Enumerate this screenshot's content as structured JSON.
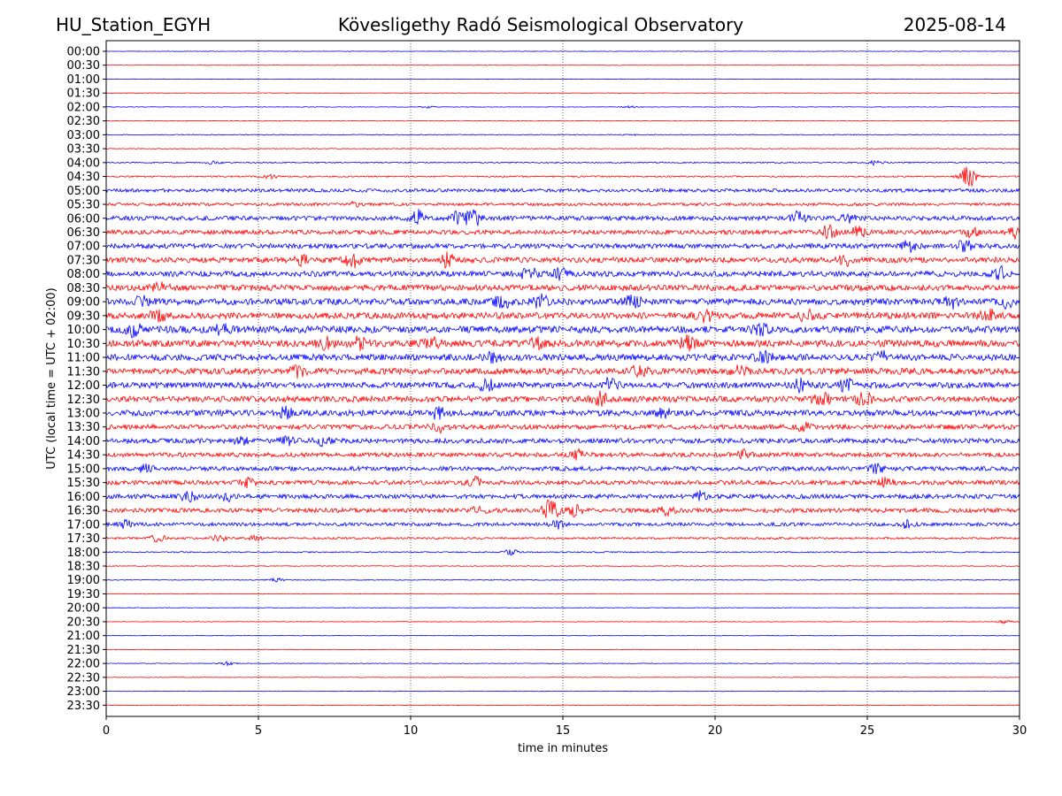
{
  "header": {
    "station": "HU_Station_EGYH",
    "observatory": "Kövesligethy Radó Seismological Observatory",
    "date": "2025-08-14"
  },
  "chart_data": {
    "type": "line",
    "title": "Kövesligethy Radó Seismological Observatory",
    "xlabel": "time in minutes",
    "ylabel": "UTC (local time = UTC + 02:00)",
    "xlim": [
      0,
      30
    ],
    "xticks": [
      "0",
      "5",
      "10",
      "15",
      "20",
      "25",
      "30"
    ],
    "xtick_values": [
      0,
      5,
      10,
      15,
      20,
      25,
      30
    ],
    "grid": "vertical dotted at 5-minute ticks",
    "trace_colors": [
      "#0000ff",
      "#ff0000"
    ],
    "rows": [
      {
        "label": "00:00",
        "level": 0.05,
        "events": []
      },
      {
        "label": "00:30",
        "level": 0.05,
        "events": []
      },
      {
        "label": "01:00",
        "level": 0.05,
        "events": []
      },
      {
        "label": "01:30",
        "level": 0.05,
        "events": []
      },
      {
        "label": "02:00",
        "level": 0.06,
        "events": [
          [
            10.6,
            0.2
          ],
          [
            17.2,
            0.2
          ]
        ]
      },
      {
        "label": "02:30",
        "level": 0.06,
        "events": []
      },
      {
        "label": "03:00",
        "level": 0.08,
        "events": [
          [
            17.2,
            0.15
          ]
        ]
      },
      {
        "label": "03:30",
        "level": 0.08,
        "events": []
      },
      {
        "label": "04:00",
        "level": 0.12,
        "events": [
          [
            3.5,
            0.3
          ],
          [
            25.3,
            0.5
          ]
        ]
      },
      {
        "label": "04:30",
        "level": 0.15,
        "events": [
          [
            5.4,
            0.4
          ],
          [
            28.3,
            2.6
          ]
        ]
      },
      {
        "label": "05:00",
        "level": 0.35,
        "events": []
      },
      {
        "label": "05:30",
        "level": 0.3,
        "events": [
          [
            8.2,
            0.5
          ]
        ]
      },
      {
        "label": "06:00",
        "level": 0.45,
        "events": [
          [
            10.2,
            1.6
          ],
          [
            11.6,
            1.4
          ],
          [
            12.1,
            1.4
          ],
          [
            22.7,
            1.2
          ],
          [
            24.4,
            0.8
          ]
        ]
      },
      {
        "label": "06:30",
        "level": 0.45,
        "events": [
          [
            23.7,
            1.3
          ],
          [
            24.7,
            1.0
          ],
          [
            28.4,
            0.9
          ],
          [
            29.9,
            1.2
          ]
        ]
      },
      {
        "label": "07:00",
        "level": 0.5,
        "events": [
          [
            26.4,
            1.2
          ],
          [
            28.2,
            1.0
          ]
        ]
      },
      {
        "label": "07:30",
        "level": 0.55,
        "events": [
          [
            6.4,
            0.8
          ],
          [
            8.1,
            1.3
          ],
          [
            11.2,
            1.2
          ],
          [
            24.3,
            1.0
          ]
        ]
      },
      {
        "label": "08:00",
        "level": 0.55,
        "events": [
          [
            13.9,
            1.4
          ],
          [
            14.9,
            1.0
          ],
          [
            29.4,
            1.3
          ]
        ]
      },
      {
        "label": "08:30",
        "level": 0.6,
        "events": [
          [
            1.8,
            0.9
          ]
        ]
      },
      {
        "label": "09:00",
        "level": 0.65,
        "events": [
          [
            1.2,
            1.0
          ],
          [
            13.0,
            1.1
          ],
          [
            14.3,
            1.2
          ],
          [
            17.3,
            1.4
          ],
          [
            27.8,
            1.0
          ],
          [
            29.6,
            1.0
          ]
        ]
      },
      {
        "label": "09:30",
        "level": 0.65,
        "events": [
          [
            1.7,
            1.0
          ],
          [
            19.7,
            1.0
          ],
          [
            23.0,
            1.1
          ],
          [
            29.0,
            1.1
          ]
        ]
      },
      {
        "label": "10:00",
        "level": 0.7,
        "events": [
          [
            0.9,
            1.1
          ],
          [
            3.8,
            0.9
          ],
          [
            21.5,
            0.8
          ]
        ]
      },
      {
        "label": "10:30",
        "level": 0.7,
        "events": [
          [
            7.2,
            1.0
          ],
          [
            8.3,
            1.0
          ],
          [
            10.7,
            1.0
          ],
          [
            14.1,
            0.9
          ],
          [
            19.1,
            1.2
          ]
        ]
      },
      {
        "label": "11:00",
        "level": 0.65,
        "events": [
          [
            12.7,
            0.8
          ],
          [
            21.6,
            1.0
          ],
          [
            25.5,
            0.9
          ]
        ]
      },
      {
        "label": "11:30",
        "level": 0.65,
        "events": [
          [
            6.3,
            0.9
          ],
          [
            17.5,
            1.1
          ],
          [
            20.8,
            0.8
          ]
        ]
      },
      {
        "label": "12:00",
        "level": 0.6,
        "events": [
          [
            12.5,
            1.1
          ],
          [
            16.5,
            1.2
          ],
          [
            22.8,
            1.1
          ],
          [
            24.3,
            1.3
          ]
        ]
      },
      {
        "label": "12:30",
        "level": 0.6,
        "events": [
          [
            16.2,
            1.4
          ],
          [
            23.5,
            1.3
          ],
          [
            24.9,
            1.4
          ]
        ]
      },
      {
        "label": "13:00",
        "level": 0.6,
        "events": [
          [
            5.9,
            1.1
          ],
          [
            10.9,
            1.0
          ],
          [
            18.3,
            0.8
          ]
        ]
      },
      {
        "label": "13:30",
        "level": 0.5,
        "events": [
          [
            10.9,
            0.9
          ],
          [
            22.9,
            0.7
          ]
        ]
      },
      {
        "label": "14:00",
        "level": 0.5,
        "events": [
          [
            4.5,
            0.8
          ],
          [
            5.9,
            0.8
          ],
          [
            7.1,
            0.8
          ]
        ]
      },
      {
        "label": "14:30",
        "level": 0.45,
        "events": [
          [
            15.5,
            0.8
          ],
          [
            20.9,
            0.8
          ]
        ]
      },
      {
        "label": "15:00",
        "level": 0.45,
        "events": [
          [
            1.3,
            0.6
          ],
          [
            25.3,
            0.8
          ]
        ]
      },
      {
        "label": "15:30",
        "level": 0.45,
        "events": [
          [
            4.7,
            0.8
          ],
          [
            12.1,
            0.9
          ],
          [
            25.6,
            0.8
          ]
        ]
      },
      {
        "label": "16:00",
        "level": 0.45,
        "events": [
          [
            2.7,
            0.9
          ],
          [
            4.0,
            0.7
          ],
          [
            19.5,
            0.9
          ]
        ]
      },
      {
        "label": "16:30",
        "level": 0.45,
        "events": [
          [
            12.2,
            0.8
          ],
          [
            14.6,
            2.4
          ],
          [
            15.4,
            1.0
          ],
          [
            18.4,
            0.8
          ]
        ]
      },
      {
        "label": "17:00",
        "level": 0.35,
        "events": [
          [
            0.6,
            0.7
          ],
          [
            14.8,
            0.9
          ],
          [
            26.3,
            0.7
          ]
        ]
      },
      {
        "label": "17:30",
        "level": 0.2,
        "events": [
          [
            1.7,
            0.8
          ],
          [
            3.7,
            0.6
          ],
          [
            4.9,
            0.5
          ]
        ]
      },
      {
        "label": "18:00",
        "level": 0.12,
        "events": [
          [
            13.3,
            0.6
          ]
        ]
      },
      {
        "label": "18:30",
        "level": 0.08,
        "events": []
      },
      {
        "label": "19:00",
        "level": 0.08,
        "events": [
          [
            5.6,
            0.4
          ]
        ]
      },
      {
        "label": "19:30",
        "level": 0.06,
        "events": []
      },
      {
        "label": "20:00",
        "level": 0.05,
        "events": []
      },
      {
        "label": "20:30",
        "level": 0.06,
        "events": [
          [
            29.5,
            0.3
          ]
        ]
      },
      {
        "label": "21:00",
        "level": 0.06,
        "events": []
      },
      {
        "label": "21:30",
        "level": 0.05,
        "events": []
      },
      {
        "label": "22:00",
        "level": 0.06,
        "events": [
          [
            4.0,
            0.4
          ]
        ]
      },
      {
        "label": "22:30",
        "level": 0.05,
        "events": []
      },
      {
        "label": "23:00",
        "level": 0.05,
        "events": []
      },
      {
        "label": "23:30",
        "level": 0.05,
        "events": []
      }
    ]
  }
}
